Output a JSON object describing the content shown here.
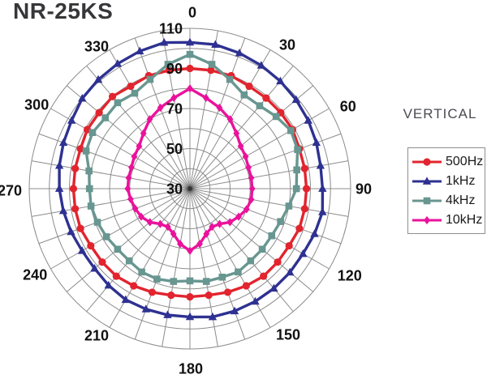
{
  "title": "NR-25KS",
  "orientation_label": "VERTICAL",
  "chart_data": {
    "type": "polar-line",
    "title": "NR-25KS",
    "annotation": "VERTICAL",
    "angle_unit": "degrees",
    "angle_step": 10,
    "angle_tick_labels": [
      0,
      30,
      60,
      90,
      120,
      150,
      180,
      210,
      240,
      270,
      300,
      330
    ],
    "radial_axis": {
      "min": 30,
      "max": 110,
      "ring_step": 10,
      "labeled_rings": [
        110,
        90,
        70,
        50,
        30
      ]
    },
    "grid": {
      "on": true,
      "color": "#8c8c8c",
      "spokes_every_deg": 10
    },
    "legend_position": "right",
    "angles": [
      0,
      10,
      20,
      30,
      40,
      50,
      60,
      70,
      80,
      90,
      100,
      110,
      120,
      130,
      140,
      150,
      160,
      170,
      180,
      190,
      200,
      210,
      220,
      230,
      240,
      250,
      260,
      270,
      280,
      290,
      300,
      310,
      320,
      330,
      340,
      350
    ],
    "series": [
      {
        "name": "500Hz",
        "color": "#e2242e",
        "marker": "circle",
        "values": [
          90,
          90,
          90,
          89,
          89,
          89,
          89,
          88,
          88,
          88,
          88,
          88,
          87,
          87,
          87,
          86,
          85,
          84,
          84,
          84,
          85,
          86,
          87,
          87,
          87,
          88,
          88,
          88,
          88,
          88,
          89,
          89,
          90,
          89,
          90,
          90
        ]
      },
      {
        "name": "1kHz",
        "color": "#2e3191",
        "marker": "triangle",
        "values": [
          103,
          103,
          102,
          101,
          100,
          99,
          98,
          97,
          96,
          96,
          97,
          96,
          95,
          95,
          95,
          95,
          95,
          95,
          94,
          94,
          94,
          94,
          93,
          92,
          92,
          93,
          94,
          95,
          96,
          97,
          98,
          100,
          101,
          102,
          103,
          104
        ]
      },
      {
        "name": "4kHz",
        "color": "#689690",
        "marker": "square",
        "values": [
          97,
          93,
          88,
          84,
          84,
          86,
          88,
          87,
          84,
          83,
          80,
          78,
          77,
          77,
          77,
          78,
          77,
          77,
          76,
          77,
          78,
          78,
          77,
          77,
          78,
          79,
          80,
          80,
          81,
          85,
          86,
          85,
          86,
          85,
          88,
          93
        ]
      },
      {
        "name": "10kHz",
        "color": "#ea129b",
        "marker": "diamond",
        "values": [
          80,
          76,
          73,
          70,
          66,
          63,
          62,
          61,
          61,
          61,
          61,
          60,
          58,
          56,
          53,
          52,
          54,
          58,
          61,
          58,
          54,
          52,
          53,
          56,
          58,
          59,
          60,
          61,
          61,
          61,
          62,
          63,
          66,
          70,
          73,
          76
        ]
      }
    ]
  }
}
